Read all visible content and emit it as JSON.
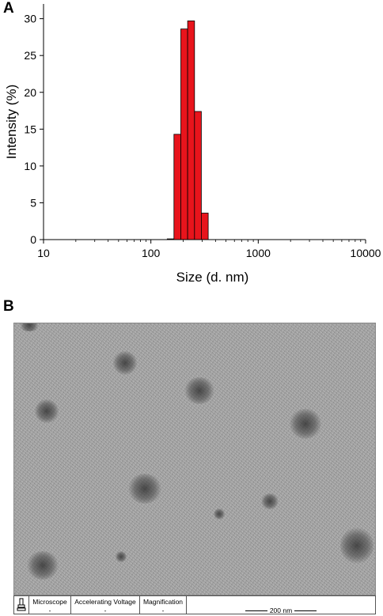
{
  "panels": {
    "a_label": "A",
    "b_label": "B"
  },
  "chart_data": {
    "type": "bar",
    "xlabel": "Size (d. nm)",
    "ylabel": "Intensity (%)",
    "x_scale": "log",
    "xlim": [
      10,
      10000
    ],
    "ylim": [
      0,
      32
    ],
    "x_ticks": [
      "10",
      "100",
      "1000",
      "10000"
    ],
    "y_ticks": [
      "0",
      "5",
      "10",
      "15",
      "20",
      "25",
      "30"
    ],
    "bar_color": "#e8141c",
    "bins": [
      {
        "from": 142,
        "to": 164,
        "value": 0.1
      },
      {
        "from": 164,
        "to": 190,
        "value": 14.3
      },
      {
        "from": 190,
        "to": 220,
        "value": 28.6
      },
      {
        "from": 220,
        "to": 255,
        "value": 29.7
      },
      {
        "from": 255,
        "to": 295,
        "value": 17.4
      },
      {
        "from": 295,
        "to": 342,
        "value": 3.6
      }
    ]
  },
  "tem": {
    "info": {
      "microscope_label": "Microscope",
      "microscope_value": "-",
      "voltage_label": "Accelerating Voltage",
      "voltage_value": "-",
      "magnification_label": "Magnification",
      "magnification_value": "-",
      "scale_label": "200 nm"
    }
  }
}
